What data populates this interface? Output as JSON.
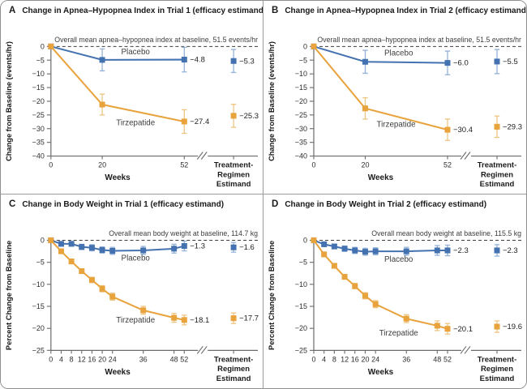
{
  "colors": {
    "axis": "#6b6b6b",
    "tick_text": "#2e2e2e",
    "title_text": "#1a1a1a",
    "note_text": "#3d3d3d",
    "baseline_dash": "#3c3c3c",
    "value_label": "#222222",
    "series_label": "#3d3d3d",
    "border": "#8f8f8f",
    "placebo": "#4472b0",
    "placebo_error": "#94b2d8",
    "tirzepatide": "#e8a33d",
    "tirzepatide_error": "#edc583"
  },
  "chart_data": [
    {
      "type": "line",
      "panel_letter": "A",
      "title": "Change in Apnea–Hypopnea Index in Trial 1 (efficacy estimand)",
      "baseline_note": "Overall mean apnea–hypopnea index at baseline, 51.5 events/hr",
      "ylabel": "Change from Baseline (events/hr)",
      "xlabel": "Weeks",
      "ylim": [
        -40,
        0
      ],
      "ytick_step": 5,
      "grid": false,
      "x_axis": {
        "ticks": [
          0,
          20,
          52
        ],
        "data_max": 52,
        "estimand_label_lines": [
          "Treatment-",
          "Regimen",
          "Estimand"
        ]
      },
      "series": [
        {
          "name": "Placebo",
          "color_key": "placebo",
          "x": [
            0,
            20,
            52
          ],
          "values": [
            0,
            -4.9,
            -4.8
          ],
          "errors": [
            0,
            4.0,
            4.5
          ],
          "end_label": "−4.8",
          "estimand": {
            "value": -5.3,
            "error": 4.2,
            "label": "−5.3"
          },
          "name_label": {
            "x": 33,
            "y": -2.9
          }
        },
        {
          "name": "Tirzepatide",
          "color_key": "tirzepatide",
          "x": [
            0,
            20,
            52
          ],
          "values": [
            0,
            -21.2,
            -27.4
          ],
          "errors": [
            0,
            3.8,
            4.3
          ],
          "end_label": "−27.4",
          "estimand": {
            "value": -25.3,
            "error": 4.2,
            "label": "−25.3"
          },
          "name_label": {
            "x": 33,
            "y": -28.8
          }
        }
      ]
    },
    {
      "type": "line",
      "panel_letter": "B",
      "title": "Change in Apnea–Hypopnea Index in Trial 2 (efficacy estimand)",
      "baseline_note": "Overall mean apnea–hypopnea index at baseline, 51.5 events/hr",
      "ylabel": "Change from Baseline (events/hr)",
      "xlabel": "Weeks",
      "ylim": [
        -40,
        0
      ],
      "ytick_step": 5,
      "grid": false,
      "x_axis": {
        "ticks": [
          0,
          20,
          52
        ],
        "data_max": 52,
        "estimand_label_lines": [
          "Treatment-",
          "Regimen",
          "Estimand"
        ]
      },
      "series": [
        {
          "name": "Placebo",
          "color_key": "placebo",
          "x": [
            0,
            20,
            52
          ],
          "values": [
            0,
            -5.6,
            -6.0
          ],
          "errors": [
            0,
            4.2,
            4.3
          ],
          "end_label": "−6.0",
          "estimand": {
            "value": -5.5,
            "error": 4.4,
            "label": "−5.5"
          },
          "name_label": {
            "x": 33,
            "y": -3.3
          }
        },
        {
          "name": "Tirzepatide",
          "color_key": "tirzepatide",
          "x": [
            0,
            20,
            52
          ],
          "values": [
            0,
            -22.6,
            -30.4
          ],
          "errors": [
            0,
            3.9,
            3.9
          ],
          "end_label": "−30.4",
          "estimand": {
            "value": -29.3,
            "error": 3.9,
            "label": "−29.3"
          },
          "name_label": {
            "x": 32,
            "y": -29.3
          }
        }
      ]
    },
    {
      "type": "line",
      "panel_letter": "C",
      "title": "Change in Body Weight in Trial 1 (efficacy estimand)",
      "baseline_note": "Overall mean body weight at baseline, 114.7 kg",
      "ylabel": "Percent Change from Baseline",
      "xlabel": "Weeks",
      "ylim": [
        -25,
        0
      ],
      "ytick_step": 5,
      "grid": false,
      "x_axis": {
        "ticks": [
          0,
          4,
          8,
          12,
          16,
          20,
          24,
          36,
          48,
          52
        ],
        "data_max": 52,
        "estimand_label_lines": [
          "Treatment-",
          "Regimen",
          "Estimand"
        ]
      },
      "series": [
        {
          "name": "Placebo",
          "color_key": "placebo",
          "x": [
            0,
            4,
            8,
            12,
            16,
            20,
            24,
            36,
            48,
            52
          ],
          "values": [
            0,
            -0.8,
            -0.8,
            -1.5,
            -1.7,
            -2.2,
            -2.4,
            -2.3,
            -1.9,
            -1.3
          ],
          "errors": [
            0,
            0.5,
            0.5,
            0.6,
            0.7,
            0.7,
            0.8,
            0.9,
            1.0,
            1.1
          ],
          "end_label": "−1.3",
          "estimand": {
            "value": -1.6,
            "error": 1.1,
            "label": "−1.6"
          },
          "name_label": {
            "x": 33,
            "y": -4.6
          }
        },
        {
          "name": "Tirzepatide",
          "color_key": "tirzepatide",
          "x": [
            0,
            4,
            8,
            12,
            16,
            20,
            24,
            36,
            48,
            52
          ],
          "values": [
            0,
            -2.5,
            -4.8,
            -7.0,
            -9.0,
            -11.0,
            -12.8,
            -15.9,
            -17.6,
            -18.1
          ],
          "errors": [
            0,
            0.3,
            0.4,
            0.5,
            0.6,
            0.7,
            0.8,
            0.9,
            1.0,
            1.1
          ],
          "end_label": "−18.1",
          "estimand": {
            "value": -17.7,
            "error": 1.2,
            "label": "−17.7"
          },
          "name_label": {
            "x": 33,
            "y": -18.7
          }
        }
      ]
    },
    {
      "type": "line",
      "panel_letter": "D",
      "title": "Change in Body Weight in Trial 2 (efficacy estimand)",
      "baseline_note": "Overall mean body weight at baseline, 115.5 kg",
      "ylabel": "Percent Change from Baseline",
      "xlabel": "Weeks",
      "ylim": [
        -25,
        0
      ],
      "ytick_step": 5,
      "grid": false,
      "x_axis": {
        "ticks": [
          0,
          4,
          8,
          12,
          16,
          20,
          24,
          36,
          48,
          52
        ],
        "data_max": 52,
        "estimand_label_lines": [
          "Treatment-",
          "Regimen",
          "Estimand"
        ]
      },
      "series": [
        {
          "name": "Placebo",
          "color_key": "placebo",
          "x": [
            0,
            4,
            8,
            12,
            16,
            20,
            24,
            36,
            48,
            52
          ],
          "values": [
            0,
            -0.9,
            -1.4,
            -1.9,
            -2.3,
            -2.6,
            -2.5,
            -2.5,
            -2.3,
            -2.3
          ],
          "errors": [
            0,
            0.5,
            0.5,
            0.6,
            0.7,
            0.8,
            0.8,
            0.9,
            1.1,
            1.2
          ],
          "end_label": "−2.3",
          "estimand": {
            "value": -2.3,
            "error": 1.3,
            "label": "−2.3"
          },
          "name_label": {
            "x": 33,
            "y": -4.9
          }
        },
        {
          "name": "Tirzepatide",
          "color_key": "tirzepatide",
          "x": [
            0,
            4,
            8,
            12,
            16,
            20,
            24,
            36,
            48,
            52
          ],
          "values": [
            0,
            -3.2,
            -5.8,
            -8.3,
            -10.4,
            -12.6,
            -14.5,
            -17.8,
            -19.4,
            -20.1
          ],
          "errors": [
            0,
            0.3,
            0.4,
            0.5,
            0.6,
            0.7,
            0.8,
            0.9,
            1.1,
            1.2
          ],
          "end_label": "−20.1",
          "estimand": {
            "value": -19.6,
            "error": 1.3,
            "label": "−19.6"
          },
          "name_label": {
            "x": 33,
            "y": -21.6
          }
        }
      ]
    }
  ]
}
